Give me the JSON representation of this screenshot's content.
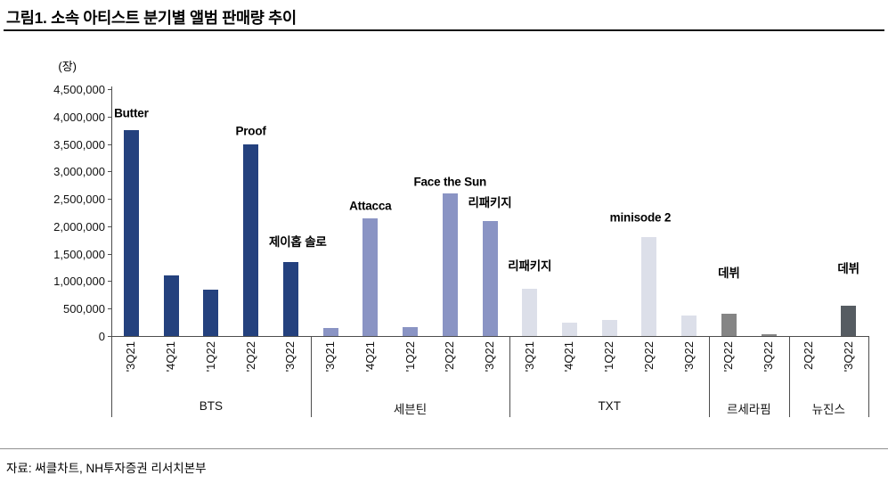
{
  "title": "그림1. 소속 아티스트 분기별 앨범 판매량 추이",
  "footer": "자료: 써클차트, NH투자증권 리서치본부",
  "chart_data": {
    "type": "bar",
    "unit_label": "(장)",
    "ylim": [
      0,
      4500000
    ],
    "ytick_step": 500000,
    "ytick_labels": [
      "0",
      "500,000",
      "1,000,000",
      "1,500,000",
      "2,000,000",
      "2,500,000",
      "3,000,000",
      "3,500,000",
      "4,000,000",
      "4,500,000"
    ],
    "grid": false,
    "legend": "none",
    "groups": [
      {
        "name": "BTS",
        "color": "#24417e",
        "bars": [
          {
            "label": "'3Q21",
            "value": 3750000
          },
          {
            "label": "'4Q21",
            "value": 1100000
          },
          {
            "label": "'1Q22",
            "value": 850000
          },
          {
            "label": "'2Q22",
            "value": 3500000
          },
          {
            "label": "'3Q22",
            "value": 1350000
          }
        ]
      },
      {
        "name": "세븐틴",
        "color": "#8a94c4",
        "bars": [
          {
            "label": "'3Q21",
            "value": 150000
          },
          {
            "label": "'4Q21",
            "value": 2150000
          },
          {
            "label": "'1Q22",
            "value": 160000
          },
          {
            "label": "'2Q22",
            "value": 2600000
          },
          {
            "label": "'3Q22",
            "value": 2100000
          }
        ]
      },
      {
        "name": "TXT",
        "color": "#dcdfe9",
        "bars": [
          {
            "label": "'3Q21",
            "value": 860000
          },
          {
            "label": "'4Q21",
            "value": 240000
          },
          {
            "label": "'1Q22",
            "value": 290000
          },
          {
            "label": "'2Q22",
            "value": 1800000
          },
          {
            "label": "'3Q22",
            "value": 380000
          }
        ]
      },
      {
        "name": "르세라핌",
        "color": "#858585",
        "bars": [
          {
            "label": "'2Q22",
            "value": 410000
          },
          {
            "label": "'3Q22",
            "value": 30000
          }
        ]
      },
      {
        "name": "뉴진스",
        "color": "#565c62",
        "bars": [
          {
            "label": "2Q22",
            "value": 0
          },
          {
            "label": "'3Q22",
            "value": 560000
          }
        ]
      }
    ],
    "annotations": [
      {
        "text": "Butter",
        "group": 0,
        "bar": 0,
        "value": 4060000
      },
      {
        "text": "Proof",
        "group": 0,
        "bar": 3,
        "value": 3740000
      },
      {
        "text": "제이홉 솔로",
        "group": 0,
        "bar": 4,
        "value": 1740000,
        "dx": 8
      },
      {
        "text": "Attacca",
        "group": 1,
        "bar": 1,
        "value": 2370000
      },
      {
        "text": "Face the Sun",
        "group": 1,
        "bar": 3,
        "value": 2810000
      },
      {
        "text": "리패키지",
        "group": 1,
        "bar": 4,
        "value": 2450000
      },
      {
        "text": "리패키지",
        "group": 2,
        "bar": 0,
        "value": 1300000
      },
      {
        "text": "minisode 2",
        "group": 2,
        "bar": 3,
        "value": 2160000,
        "dx": -10
      },
      {
        "text": "데뷔",
        "group": 3,
        "bar": 0,
        "value": 1170000
      },
      {
        "text": "데뷔",
        "group": 4,
        "bar": 1,
        "value": 1250000
      }
    ]
  }
}
